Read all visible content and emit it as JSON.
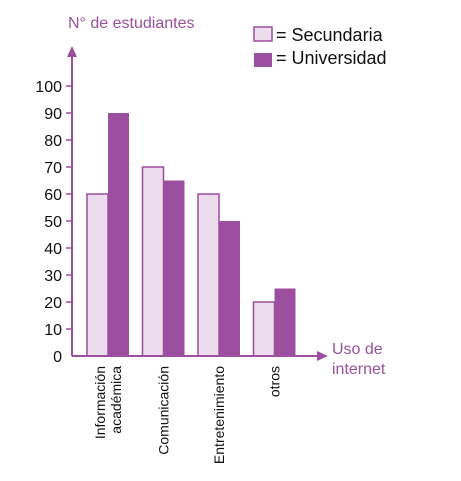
{
  "chart_data": {
    "type": "bar",
    "ylabel": "N° de estudiantes",
    "xlabel_lines": [
      "Uso de",
      "internet"
    ],
    "categories": [
      [
        "Información",
        "académica"
      ],
      [
        "Comunicación"
      ],
      [
        "Entretenimiento"
      ],
      [
        "otros"
      ]
    ],
    "series": [
      {
        "name": "= Secundaria",
        "values": [
          60,
          70,
          60,
          20
        ]
      },
      {
        "name": "= Universidad",
        "values": [
          90,
          65,
          50,
          25
        ]
      }
    ],
    "yticks": [
      "0",
      "10",
      "20",
      "30",
      "40",
      "50",
      "60",
      "70",
      "80",
      "90",
      "100"
    ],
    "ylim": [
      0,
      100
    ],
    "legend_position": "top-right",
    "grid": false
  },
  "colors": {
    "axis": "#9b4f9e",
    "secundaria_fill": "#eddcee",
    "secundaria_stroke": "#9b4f9e",
    "universidad_fill": "#9b4f9e"
  }
}
